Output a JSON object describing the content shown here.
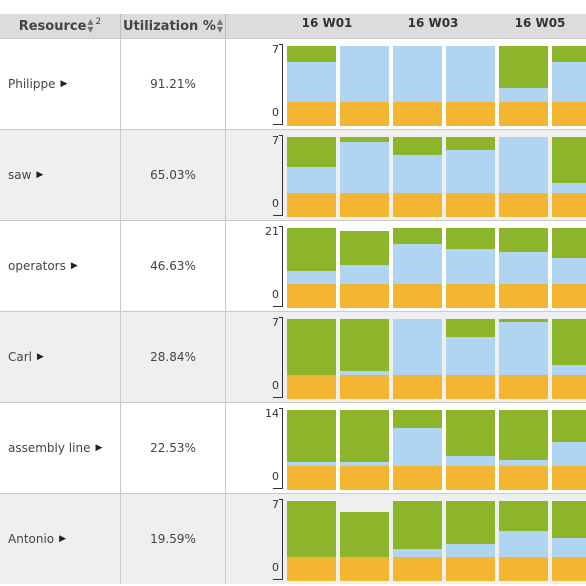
{
  "header": {
    "resource_label": "Resource",
    "resource_sort_rank": "2",
    "utilization_label": "Utilization %",
    "weeks": [
      "16 W01",
      "16 W03",
      "16 W05"
    ]
  },
  "colors": {
    "free": "#8db52c",
    "load": "#b0d5f2",
    "setup": "#f3b632",
    "header_bg": "#dcdcdc",
    "row_alt_bg": "#efefef"
  },
  "rows": [
    {
      "name": "Philippe",
      "utilization": "91.21%",
      "ymax": "7",
      "ymin": "0",
      "bars": [
        {
          "setup": 0.3,
          "load": 0.5,
          "free": 0.2
        },
        {
          "setup": 0.3,
          "load": 0.7,
          "free": 0.0
        },
        {
          "setup": 0.3,
          "load": 0.7,
          "free": 0.0
        },
        {
          "setup": 0.3,
          "load": 0.7,
          "free": 0.0
        },
        {
          "setup": 0.3,
          "load": 0.18,
          "free": 0.52
        },
        {
          "setup": 0.3,
          "load": 0.5,
          "free": 0.2
        }
      ]
    },
    {
      "name": "saw",
      "utilization": "65.03%",
      "ymax": "7",
      "ymin": "0",
      "bars": [
        {
          "setup": 0.3,
          "load": 0.32,
          "free": 0.38
        },
        {
          "setup": 0.3,
          "load": 0.64,
          "free": 0.06
        },
        {
          "setup": 0.3,
          "load": 0.48,
          "free": 0.22
        },
        {
          "setup": 0.3,
          "load": 0.54,
          "free": 0.16
        },
        {
          "setup": 0.3,
          "load": 0.7,
          "free": 0.0
        },
        {
          "setup": 0.3,
          "load": 0.12,
          "free": 0.58
        }
      ]
    },
    {
      "name": "operators",
      "utilization": "46.63%",
      "ymax": "21",
      "ymin": "0",
      "bars": [
        {
          "setup": 0.3,
          "load": 0.16,
          "free": 0.54
        },
        {
          "setup": 0.3,
          "load": 0.24,
          "free": 0.42
        },
        {
          "setup": 0.3,
          "load": 0.5,
          "free": 0.2
        },
        {
          "setup": 0.3,
          "load": 0.44,
          "free": 0.26
        },
        {
          "setup": 0.3,
          "load": 0.4,
          "free": 0.3
        },
        {
          "setup": 0.3,
          "load": 0.32,
          "free": 0.38
        }
      ]
    },
    {
      "name": "Carl",
      "utilization": "28.84%",
      "ymax": "7",
      "ymin": "0",
      "bars": [
        {
          "setup": 0.3,
          "load": 0.0,
          "free": 0.7
        },
        {
          "setup": 0.3,
          "load": 0.05,
          "free": 0.65
        },
        {
          "setup": 0.3,
          "load": 0.7,
          "free": 0.0
        },
        {
          "setup": 0.3,
          "load": 0.48,
          "free": 0.22
        },
        {
          "setup": 0.3,
          "load": 0.66,
          "free": 0.04
        },
        {
          "setup": 0.3,
          "load": 0.12,
          "free": 0.58
        }
      ]
    },
    {
      "name": "assembly line",
      "utilization": "22.53%",
      "ymax": "14",
      "ymin": "0",
      "bars": [
        {
          "setup": 0.3,
          "load": 0.05,
          "free": 0.65
        },
        {
          "setup": 0.3,
          "load": 0.05,
          "free": 0.65
        },
        {
          "setup": 0.3,
          "load": 0.48,
          "free": 0.22
        },
        {
          "setup": 0.3,
          "load": 0.12,
          "free": 0.58
        },
        {
          "setup": 0.3,
          "load": 0.08,
          "free": 0.62
        },
        {
          "setup": 0.3,
          "load": 0.3,
          "free": 0.4
        }
      ]
    },
    {
      "name": "Antonio",
      "utilization": "19.59%",
      "ymax": "7",
      "ymin": "0",
      "bars": [
        {
          "setup": 0.3,
          "load": 0.0,
          "free": 0.7
        },
        {
          "setup": 0.3,
          "load": 0.0,
          "free": 0.56
        },
        {
          "setup": 0.3,
          "load": 0.1,
          "free": 0.6
        },
        {
          "setup": 0.3,
          "load": 0.16,
          "free": 0.54
        },
        {
          "setup": 0.3,
          "load": 0.32,
          "free": 0.38
        },
        {
          "setup": 0.3,
          "load": 0.24,
          "free": 0.46
        }
      ]
    }
  ]
}
